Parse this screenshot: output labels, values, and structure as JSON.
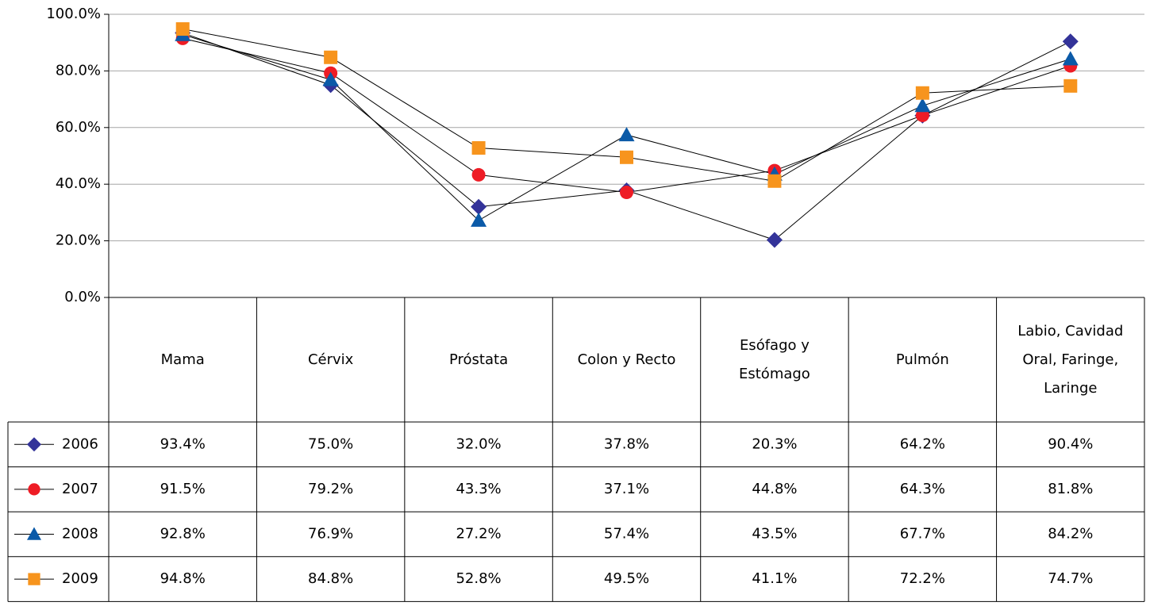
{
  "chart_data": {
    "type": "line",
    "categories": [
      "Mama",
      "Cérvix",
      "Próstata",
      "Colon y Recto",
      "Esófago y Estómago",
      "Pulmón",
      "Labio, Cavidad Oral, Faringe, Laringe"
    ],
    "series": [
      {
        "name": "2006",
        "color": "#333399",
        "marker": "diamond",
        "values": [
          93.4,
          75.0,
          32.0,
          37.8,
          20.3,
          64.2,
          90.4
        ],
        "value_labels": [
          "93.4%",
          "75.0%",
          "32.0%",
          "37.8%",
          "20.3%",
          "64.2%",
          "90.4%"
        ]
      },
      {
        "name": "2007",
        "color": "#ee1c25",
        "marker": "circle",
        "values": [
          91.5,
          79.2,
          43.3,
          37.1,
          44.8,
          64.3,
          81.8
        ],
        "value_labels": [
          "91.5%",
          "79.2%",
          "43.3%",
          "37.1%",
          "44.8%",
          "64.3%",
          "81.8%"
        ]
      },
      {
        "name": "2008",
        "color": "#0b5aa8",
        "marker": "triangle",
        "values": [
          92.8,
          76.9,
          27.2,
          57.4,
          43.5,
          67.7,
          84.2
        ],
        "value_labels": [
          "92.8%",
          "76.9%",
          "27.2%",
          "57.4%",
          "43.5%",
          "67.7%",
          "84.2%"
        ]
      },
      {
        "name": "2009",
        "color": "#f7941d",
        "marker": "square",
        "values": [
          94.8,
          84.8,
          52.8,
          49.5,
          41.1,
          72.2,
          74.7
        ],
        "value_labels": [
          "94.8%",
          "84.8%",
          "52.8%",
          "49.5%",
          "41.1%",
          "72.2%",
          "74.7%"
        ]
      }
    ],
    "ylim": [
      0,
      100
    ],
    "yticks": [
      {
        "value": 0,
        "label": "0.0%"
      },
      {
        "value": 20,
        "label": "20.0%"
      },
      {
        "value": 40,
        "label": "40.0%"
      },
      {
        "value": 60,
        "label": "60.0%"
      },
      {
        "value": 80,
        "label": "80.0%"
      },
      {
        "value": 100,
        "label": "100.0%"
      }
    ],
    "grid": true
  }
}
